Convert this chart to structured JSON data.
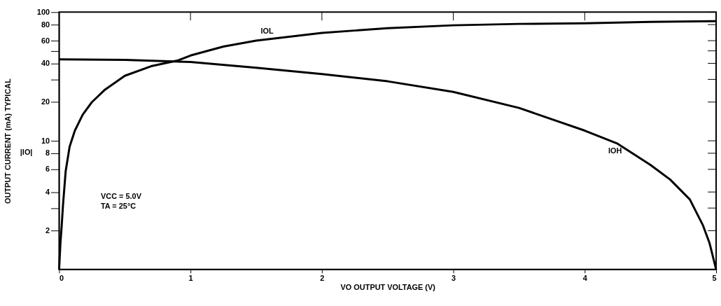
{
  "chart_data": {
    "type": "line",
    "xlabel": "VO OUTPUT VOLTAGE (V)",
    "ylabel": "OUTPUT CURRENT (mA) TYPICAL",
    "log": "y",
    "grid": false,
    "line_style": "solid",
    "marker": "none",
    "xlim": [
      0,
      5
    ],
    "xticks": [
      0,
      1,
      2,
      3,
      4,
      5
    ],
    "ylim": [
      1,
      100
    ],
    "yticks": [
      2,
      {
        "value": 3,
        "label": null
      },
      4,
      6,
      8,
      10,
      20,
      {
        "value": 30,
        "label": null
      },
      40,
      {
        "value": 50,
        "label": null
      },
      60,
      80,
      100
    ],
    "series": [
      {
        "color": "#000000",
        "x": [
          0,
          0.01,
          0.02,
          0.03,
          0.05,
          0.08,
          0.12,
          0.18,
          0.25,
          0.35,
          0.5,
          0.7,
          0.9,
          1.0,
          1.25,
          1.5,
          2.0,
          2.5,
          3.0,
          3.5,
          4.0,
          4.5,
          5.0
        ],
        "values": [
          1,
          1.6,
          2.2,
          3.2,
          5.8,
          9,
          12,
          16,
          20,
          25,
          32,
          38,
          42,
          46,
          54,
          60,
          69,
          75,
          79,
          81,
          82,
          84,
          85
        ]
      },
      {
        "color": "#000000",
        "x": [
          0,
          0.5,
          1.0,
          1.5,
          2.0,
          2.5,
          3.0,
          3.5,
          4.0,
          4.25,
          4.5,
          4.65,
          4.8,
          4.9,
          4.95,
          5.0
        ],
        "values": [
          43,
          42.5,
          41,
          37,
          33,
          29,
          24,
          18,
          12,
          9.5,
          6.5,
          5,
          3.5,
          2.2,
          1.6,
          1
        ]
      }
    ],
    "annotations": [
      "IOL",
      "IOH",
      "|IO|",
      "VCC = 5.0V",
      "TA = 25°C"
    ]
  }
}
